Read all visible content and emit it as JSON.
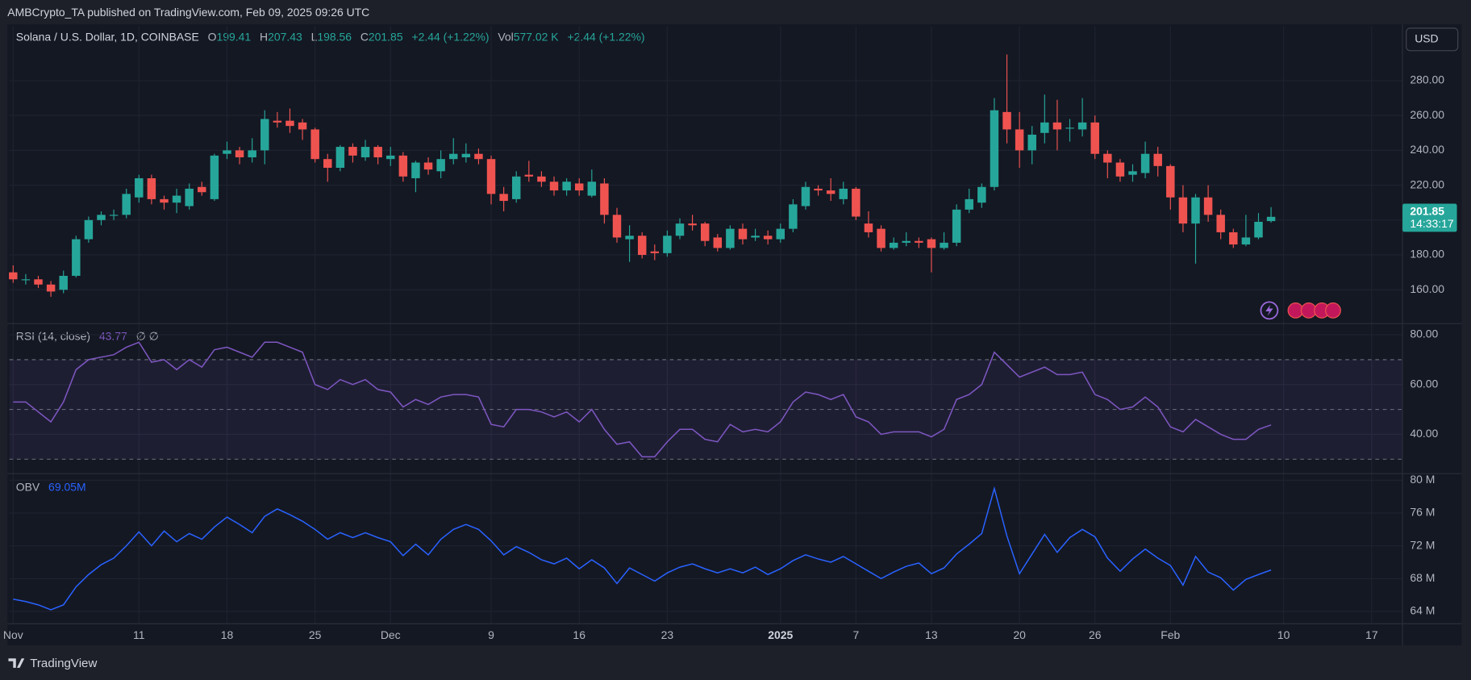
{
  "header": {
    "published": "AMBCrypto_TA published on TradingView.com, Feb 09, 2025 09:26 UTC",
    "symbol": "Solana / U.S. Dollar, 1D, COINBASE",
    "legend_labels": [
      "O",
      "H",
      "L",
      "C"
    ],
    "change": "+2.44 (+1.22%)",
    "volume_label": "Vol",
    "volume": "577.02 K",
    "volume_change": "+2.44 (+1.22%)",
    "currency": "USD",
    "countdown": "14:33:17"
  },
  "chart_data": [
    {
      "type": "candlestick",
      "up_color": "#26a69a",
      "down_color": "#ef5350",
      "x": [
        0,
        1,
        2,
        3,
        4,
        5,
        6,
        7,
        8,
        9,
        10,
        11,
        12,
        13,
        14,
        15,
        16,
        17,
        18,
        19,
        20,
        21,
        22,
        23,
        24,
        25,
        26,
        27,
        28,
        29,
        30,
        31,
        32,
        33,
        34,
        35,
        36,
        37,
        38,
        39,
        40,
        41,
        42,
        43,
        44,
        45,
        46,
        47,
        48,
        49,
        50,
        51,
        52,
        53,
        54,
        55,
        56,
        57,
        58,
        59,
        60,
        61,
        62,
        63,
        64,
        65,
        66,
        67,
        68,
        69,
        70,
        71,
        72,
        73,
        74,
        75,
        76,
        77,
        78,
        79,
        80,
        81,
        82,
        83,
        84,
        85,
        86,
        87,
        88,
        89,
        90,
        91,
        92,
        93,
        94,
        95,
        96,
        97,
        98,
        99,
        100
      ],
      "open": [
        170,
        166,
        166,
        163,
        160,
        168,
        189,
        200,
        203,
        203,
        213,
        224,
        212,
        210,
        208,
        219,
        212,
        238,
        240,
        236,
        240,
        257,
        257,
        256,
        252,
        235,
        230,
        242,
        236,
        242,
        235,
        237,
        224,
        233,
        228,
        235,
        236,
        238,
        235,
        215,
        212,
        226,
        225,
        222,
        217,
        221,
        214,
        221,
        203,
        189,
        191,
        182,
        181,
        191,
        198,
        198,
        190,
        184,
        195,
        190,
        191,
        189,
        195,
        208,
        218,
        217,
        212,
        218,
        198,
        195,
        184,
        187,
        188,
        189,
        184,
        187,
        206,
        210,
        219,
        262,
        252,
        240,
        250,
        256,
        253,
        252,
        256,
        238,
        233,
        226,
        227,
        238,
        231,
        213,
        198,
        213,
        203,
        193,
        186,
        190,
        199.41
      ],
      "high": [
        174,
        169,
        168,
        165,
        171,
        191,
        202,
        205,
        206,
        218,
        226,
        226,
        214,
        218,
        221,
        222,
        238,
        245,
        242,
        247,
        263,
        262,
        264,
        258,
        253,
        238,
        243,
        244,
        246,
        243,
        242,
        239,
        234,
        236,
        240,
        247,
        244,
        241,
        237,
        219,
        228,
        234,
        228,
        225,
        224,
        224,
        229,
        224,
        207,
        197,
        193,
        186,
        194,
        201,
        203,
        199,
        192,
        197,
        198,
        195,
        194,
        198,
        212,
        222,
        220,
        224,
        222,
        219,
        205,
        197,
        190,
        193,
        190,
        190,
        193,
        209,
        218,
        221,
        270,
        295,
        262,
        254,
        272,
        269,
        258,
        270,
        260,
        240,
        235,
        232,
        245,
        242,
        232,
        220,
        215,
        220,
        206,
        195,
        203,
        204,
        207.43
      ],
      "low": [
        164,
        163,
        161,
        156,
        158,
        167,
        187,
        197,
        200,
        201,
        210,
        209,
        206,
        204,
        206,
        214,
        211,
        235,
        232,
        233,
        232,
        253,
        250,
        246,
        233,
        222,
        228,
        233,
        234,
        232,
        231,
        222,
        216,
        226,
        224,
        232,
        233,
        232,
        209,
        205,
        210,
        222,
        219,
        214,
        214,
        214,
        213,
        198,
        187,
        176,
        178,
        177,
        179,
        189,
        194,
        185,
        182,
        183,
        186,
        188,
        186,
        187,
        193,
        206,
        214,
        211,
        209,
        200,
        190,
        182,
        183,
        185,
        184,
        170,
        183,
        185,
        204,
        207,
        217,
        244,
        230,
        232,
        244,
        240,
        245,
        248,
        235,
        224,
        222,
        222,
        224,
        225,
        206,
        193,
        175,
        199,
        189,
        184,
        185,
        189,
        198.56
      ],
      "close": [
        166,
        166,
        163,
        159,
        168,
        189,
        200,
        203,
        203,
        215,
        224,
        212,
        210,
        214,
        218,
        216,
        237,
        240,
        236,
        240,
        258,
        256,
        254,
        252,
        235,
        230,
        242,
        237,
        242,
        236,
        237,
        225,
        233,
        229,
        235,
        238,
        238,
        235,
        215,
        211,
        225,
        225,
        222,
        217,
        222,
        217,
        222,
        203,
        190,
        191,
        180,
        181,
        191,
        198,
        197,
        188,
        184,
        195,
        189,
        191,
        189,
        195,
        209,
        219,
        217,
        215,
        218,
        202,
        193,
        184,
        187,
        188,
        187,
        184,
        187,
        206,
        212,
        219,
        263,
        252,
        240,
        249,
        256,
        252,
        253,
        256,
        238,
        233,
        225,
        228,
        238,
        231,
        213,
        198,
        213,
        203,
        193,
        186,
        190,
        199,
        201.85
      ],
      "xlim": [
        -0.3,
        110.45
      ],
      "ylim": [
        140.6,
        311.2
      ],
      "yticks": [
        {
          "value": 160,
          "label": "160.00"
        },
        {
          "value": 180,
          "label": "180.00"
        },
        {
          "value": 200,
          "label": "200.00"
        },
        {
          "value": 220,
          "label": "220.00"
        },
        {
          "value": 240,
          "label": "240.00"
        },
        {
          "value": 260,
          "label": "260.00"
        },
        {
          "value": 280,
          "label": "280.00"
        }
      ],
      "grid": true
    },
    {
      "type": "line",
      "inputs_label": "∅ ∅",
      "x": [
        0,
        1,
        2,
        3,
        4,
        5,
        6,
        7,
        8,
        9,
        10,
        11,
        12,
        13,
        14,
        15,
        16,
        17,
        18,
        19,
        20,
        21,
        22,
        23,
        24,
        25,
        26,
        27,
        28,
        29,
        30,
        31,
        32,
        33,
        34,
        35,
        36,
        37,
        38,
        39,
        40,
        41,
        42,
        43,
        44,
        45,
        46,
        47,
        48,
        49,
        50,
        51,
        52,
        53,
        54,
        55,
        56,
        57,
        58,
        59,
        60,
        61,
        62,
        63,
        64,
        65,
        66,
        67,
        68,
        69,
        70,
        71,
        72,
        73,
        74,
        75,
        76,
        77,
        78,
        79,
        80,
        81,
        82,
        83,
        84,
        85,
        86,
        87,
        88,
        89,
        90,
        91,
        92,
        93,
        94,
        95,
        96,
        97,
        98,
        99,
        100
      ],
      "series": [
        {
          "name": "RSI (14, close)",
          "color": "#7e57c2",
          "values": [
            53,
            53,
            49,
            45,
            53,
            66,
            70,
            71,
            72,
            75,
            77,
            69,
            70,
            66,
            70,
            67,
            74,
            75,
            73,
            71,
            77,
            77,
            75,
            73,
            60,
            58,
            62,
            60,
            62,
            58,
            57,
            51,
            54,
            52,
            55,
            56,
            56,
            55,
            44,
            43,
            50,
            50,
            49,
            47,
            49,
            45,
            50,
            42,
            36,
            37,
            31,
            31,
            37,
            42,
            42,
            38,
            37,
            44,
            41,
            42,
            41,
            45,
            53,
            57,
            56,
            54,
            56,
            47,
            45,
            40,
            41,
            41,
            41,
            39,
            42,
            54,
            56,
            60,
            73,
            68,
            63,
            65,
            67,
            64,
            64,
            65,
            56,
            54,
            50,
            51,
            55,
            51,
            43,
            41,
            46,
            43,
            40,
            38,
            38,
            42,
            43.77
          ]
        }
      ],
      "bands": [
        30,
        50,
        70
      ],
      "band_color": "#7e57c2",
      "xlim": [
        -0.3,
        110.45
      ],
      "ylim": [
        24.2,
        84.5
      ],
      "yticks": [
        {
          "value": 40,
          "label": "40.00"
        },
        {
          "value": 60,
          "label": "60.00"
        },
        {
          "value": 80,
          "label": "80.00"
        }
      ],
      "grid": true
    },
    {
      "type": "line",
      "legend_value": "69.05M",
      "x": [
        0,
        1,
        2,
        3,
        4,
        5,
        6,
        7,
        8,
        9,
        10,
        11,
        12,
        13,
        14,
        15,
        16,
        17,
        18,
        19,
        20,
        21,
        22,
        23,
        24,
        25,
        26,
        27,
        28,
        29,
        30,
        31,
        32,
        33,
        34,
        35,
        36,
        37,
        38,
        39,
        40,
        41,
        42,
        43,
        44,
        45,
        46,
        47,
        48,
        49,
        50,
        51,
        52,
        53,
        54,
        55,
        56,
        57,
        58,
        59,
        60,
        61,
        62,
        63,
        64,
        65,
        66,
        67,
        68,
        69,
        70,
        71,
        72,
        73,
        74,
        75,
        76,
        77,
        78,
        79,
        80,
        81,
        82,
        83,
        84,
        85,
        86,
        87,
        88,
        89,
        90,
        91,
        92,
        93,
        94,
        95,
        96,
        97,
        98,
        99,
        100
      ],
      "series": [
        {
          "name": "OBV",
          "color": "#2962ff",
          "values": [
            65.5,
            65.2,
            64.8,
            64.2,
            64.8,
            67,
            68.5,
            69.7,
            70.5,
            72,
            73.7,
            72,
            73.8,
            72.5,
            73.5,
            72.8,
            74.3,
            75.5,
            74.6,
            73.6,
            75.6,
            76.5,
            75.8,
            75,
            74,
            72.8,
            73.6,
            73,
            73.6,
            73,
            72.5,
            70.8,
            72.2,
            70.9,
            72.8,
            74,
            74.6,
            74,
            72.6,
            70.9,
            71.9,
            71.2,
            70.3,
            69.8,
            70.5,
            69.2,
            70.3,
            69.3,
            67.4,
            69.3,
            68.5,
            67.7,
            68.7,
            69.4,
            69.8,
            69.2,
            68.7,
            69.2,
            68.7,
            69.4,
            68.5,
            69.2,
            70.2,
            70.9,
            70.4,
            70.0,
            70.7,
            69.8,
            68.9,
            68.0,
            68.8,
            69.5,
            69.9,
            68.6,
            69.3,
            71,
            72.2,
            73.5,
            79,
            73.2,
            68.6,
            71,
            73.4,
            71.2,
            73,
            74,
            73.1,
            70.5,
            68.9,
            70.4,
            71.6,
            70.5,
            69.6,
            67.2,
            70.7,
            68.8,
            68.1,
            66.6,
            67.9,
            68.5,
            69.05
          ]
        }
      ],
      "xlim": [
        -0.3,
        110.45
      ],
      "ylim": [
        62.5,
        80.8
      ],
      "yticks": [
        {
          "value": 64,
          "label": "64 M"
        },
        {
          "value": 68,
          "label": "68 M"
        },
        {
          "value": 72,
          "label": "72 M"
        },
        {
          "value": 76,
          "label": "76 M"
        },
        {
          "value": 80,
          "label": "80 M"
        }
      ],
      "xticks": [
        {
          "value": 0,
          "label": "Nov"
        },
        {
          "value": 10,
          "label": "11"
        },
        {
          "value": 17,
          "label": "18"
        },
        {
          "value": 24,
          "label": "25"
        },
        {
          "value": 30,
          "label": "Dec"
        },
        {
          "value": 38,
          "label": "9"
        },
        {
          "value": 45,
          "label": "16"
        },
        {
          "value": 52,
          "label": "23"
        },
        {
          "value": 61,
          "label": "2025"
        },
        {
          "value": 67,
          "label": "7"
        },
        {
          "value": 73,
          "label": "13"
        },
        {
          "value": 80,
          "label": "20"
        },
        {
          "value": 86,
          "label": "26"
        },
        {
          "value": 92,
          "label": "Feb"
        },
        {
          "value": 101,
          "label": "10"
        },
        {
          "value": 108,
          "label": "17"
        }
      ],
      "grid": true
    }
  ],
  "footer": {
    "brand": "TradingView"
  }
}
